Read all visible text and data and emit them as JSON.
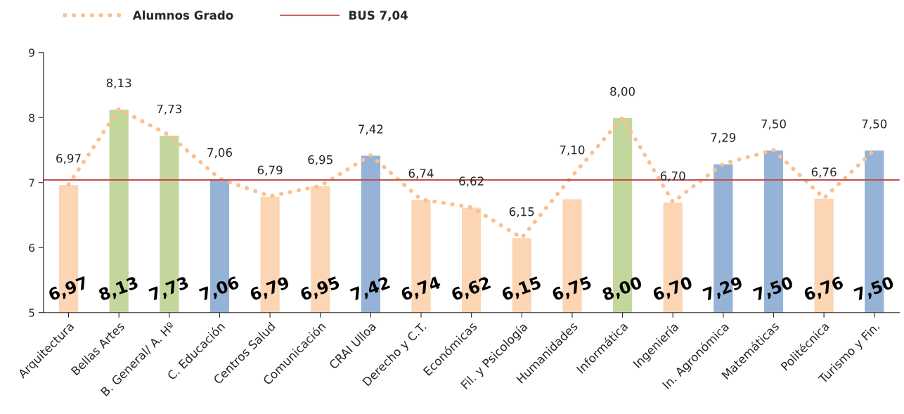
{
  "chart_data": {
    "type": "bar",
    "categories": [
      "Arquitectura",
      "Bellas Artes",
      "B. General/ A. Hº",
      "C. Educación",
      "Centros Salud",
      "Comunicación",
      "CRAI Ulloa",
      "Derecho y C.T.",
      "Económicas",
      "Fil. y Psicología",
      "Humanidades",
      "Informática",
      "Ingeniería",
      "In. Agronómica",
      "Matemáticas",
      "Politécnica",
      "Turismo y Fin."
    ],
    "series": [
      {
        "colors": [
          "#fcd5b4",
          "#c3d69b",
          "#c3d69b",
          "#95b3d7",
          "#fcd5b4",
          "#fcd5b4",
          "#95b3d7",
          "#fcd5b4",
          "#fcd5b4",
          "#fcd5b4",
          "#fcd5b4",
          "#c3d69b",
          "#fcd5b4",
          "#95b3d7",
          "#95b3d7",
          "#fcd5b4",
          "#95b3d7"
        ],
        "values": [
          6.97,
          8.13,
          7.73,
          7.06,
          6.79,
          6.95,
          7.42,
          6.74,
          6.62,
          6.15,
          6.75,
          8.0,
          6.7,
          7.29,
          7.5,
          6.76,
          7.5
        ],
        "value_labels": [
          "6,97",
          "8,13",
          "7,73",
          "7,06",
          "6,79",
          "6,95",
          "7,42",
          "6,74",
          "6,62",
          "6,15",
          "6,75",
          "8,00",
          "6,70",
          "7,29",
          "7,50",
          "6,76",
          "7,50"
        ]
      },
      {
        "type": "line",
        "name": "Alumnos Grado",
        "color": "#fac090",
        "line_style": "dotted",
        "values": [
          6.97,
          8.13,
          7.73,
          7.06,
          6.79,
          6.95,
          7.42,
          6.74,
          6.62,
          6.15,
          7.1,
          8.0,
          6.7,
          7.29,
          7.5,
          6.76,
          7.5
        ],
        "value_labels": [
          "6,97",
          "8,13",
          "7,73",
          "7,06",
          "6,79",
          "6,95",
          "7,42",
          "6,74",
          "6,62",
          "6,15",
          "7,10",
          "8,00",
          "6,70",
          "7,29",
          "7,50",
          "6,76",
          "7,50"
        ]
      }
    ],
    "ref_lines": [
      {
        "axis": "y",
        "value": 7.04,
        "label": "BUS 7,04",
        "color": "#c0504d"
      }
    ],
    "ylim": [
      5,
      9
    ],
    "yticks": [
      5,
      6,
      7,
      8,
      9
    ],
    "legend": "top left"
  }
}
